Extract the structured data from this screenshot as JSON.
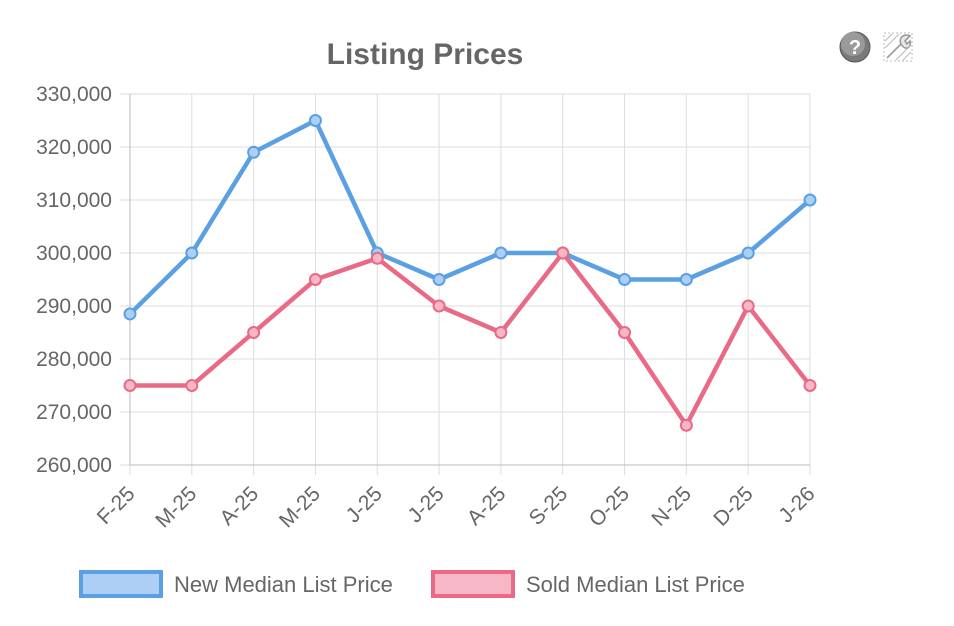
{
  "toolbar": {
    "help_icon": "help-icon",
    "settings_icon": "wrench-icon"
  },
  "chart_data": {
    "type": "line",
    "title": "Listing Prices",
    "xlabel": "",
    "ylabel": "",
    "categories": [
      "F-25",
      "M-25",
      "A-25",
      "M-25",
      "J-25",
      "J-25",
      "A-25",
      "S-25",
      "O-25",
      "N-25",
      "D-25",
      "J-26"
    ],
    "ylim": [
      260000,
      330000
    ],
    "yticks": [
      "260,000",
      "270,000",
      "280,000",
      "290,000",
      "300,000",
      "310,000",
      "320,000",
      "330,000"
    ],
    "grid": true,
    "legend_position": "bottom",
    "series": [
      {
        "name": "New Median List Price",
        "color": "#5aa0e2",
        "fill": "#aecff5",
        "values": [
          288500,
          300000,
          319000,
          325000,
          300000,
          295000,
          300000,
          300000,
          295000,
          295000,
          300000,
          310000
        ]
      },
      {
        "name": "Sold Median List Price",
        "color": "#e96a86",
        "fill": "#f8b7c6",
        "values": [
          275000,
          275000,
          285000,
          295000,
          299000,
          290000,
          285000,
          300000,
          285000,
          267500,
          290000,
          275000
        ]
      }
    ]
  }
}
